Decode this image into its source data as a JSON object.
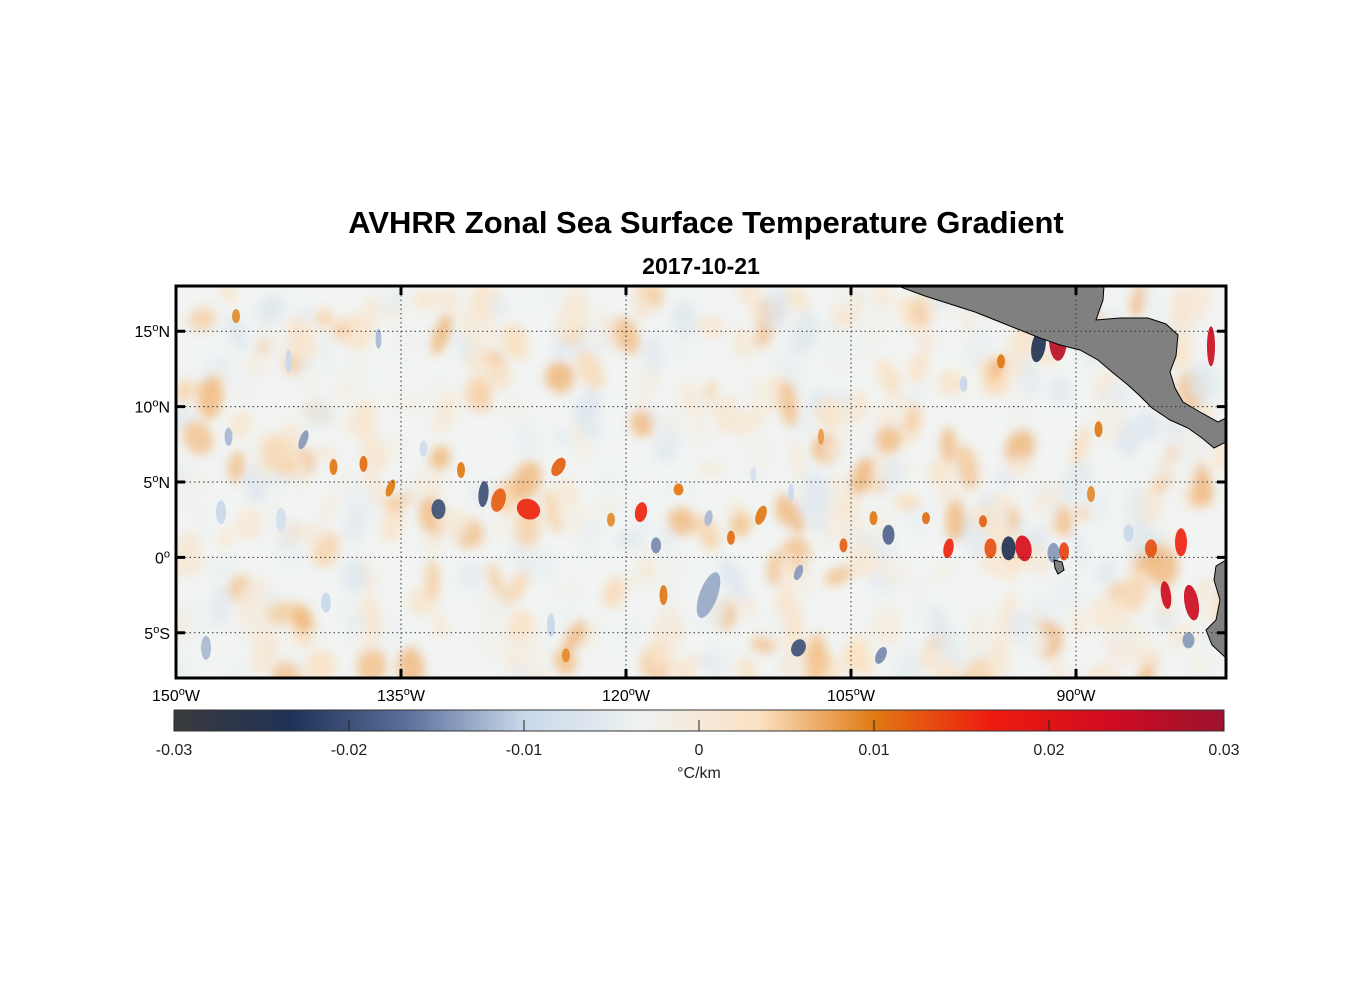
{
  "title": "AVHRR Zonal Sea Surface Temperature Gradient",
  "subtitle": "2017-10-21",
  "map": {
    "lon_range": [
      -150,
      -80
    ],
    "lat_range": [
      -8,
      18
    ],
    "lon_ticks": [
      {
        "value": -150,
        "num": "150",
        "deg": "o",
        "hemi": "W"
      },
      {
        "value": -135,
        "num": "135",
        "deg": "o",
        "hemi": "W"
      },
      {
        "value": -120,
        "num": "120",
        "deg": "o",
        "hemi": "W"
      },
      {
        "value": -105,
        "num": "105",
        "deg": "o",
        "hemi": "W"
      },
      {
        "value": -90,
        "num": "90",
        "deg": "o",
        "hemi": "W"
      }
    ],
    "lat_ticks": [
      {
        "value": 15,
        "num": "15",
        "deg": "o",
        "hemi": "N"
      },
      {
        "value": 10,
        "num": "10",
        "deg": "o",
        "hemi": "N"
      },
      {
        "value": 5,
        "num": "5",
        "deg": "o",
        "hemi": "N"
      },
      {
        "value": 0,
        "num": "0",
        "deg": "o",
        "hemi": ""
      },
      {
        "value": -5,
        "num": "5",
        "deg": "o",
        "hemi": "S"
      }
    ],
    "grid": "dotted",
    "land_color": "#808080"
  },
  "colorbar": {
    "min": -0.03,
    "max": 0.03,
    "ticks": [
      "-0.03",
      "-0.02",
      "-0.01",
      "0",
      "0.01",
      "0.02",
      "0.03"
    ],
    "label": "°C/km",
    "stops": [
      "#3a3a3d",
      "#1f3256",
      "#5b6f9a",
      "#c9d8ea",
      "#eef2f1",
      "#fbe2c4",
      "#e07a12",
      "#ee1c10",
      "#d10c1f",
      "#9c1230"
    ]
  }
}
